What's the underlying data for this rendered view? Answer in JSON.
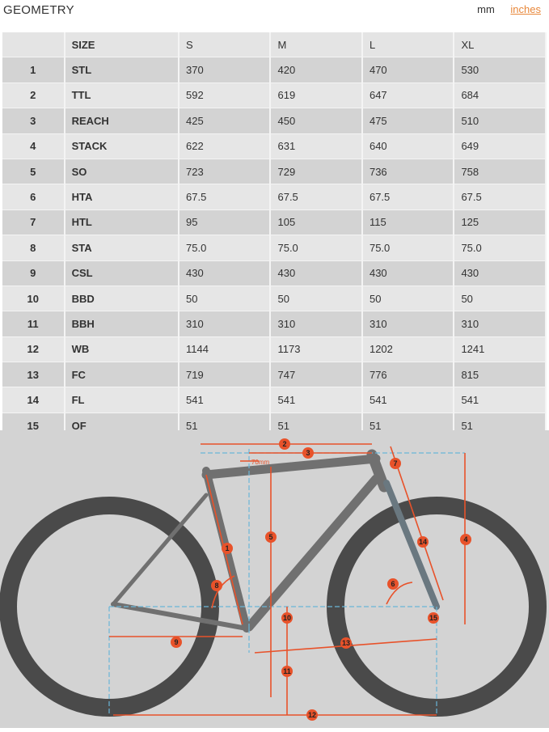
{
  "header": {
    "title": "GEOMETRY",
    "unit_mm": "mm",
    "unit_inches": "inches"
  },
  "table": {
    "columns": [
      "",
      "SIZE",
      "S",
      "M",
      "L",
      "XL"
    ],
    "rows": [
      [
        "1",
        "STL",
        "370",
        "420",
        "470",
        "530"
      ],
      [
        "2",
        "TTL",
        "592",
        "619",
        "647",
        "684"
      ],
      [
        "3",
        "REACH",
        "425",
        "450",
        "475",
        "510"
      ],
      [
        "4",
        "STACK",
        "622",
        "631",
        "640",
        "649"
      ],
      [
        "5",
        "SO",
        "723",
        "729",
        "736",
        "758"
      ],
      [
        "6",
        "HTA",
        "67.5",
        "67.5",
        "67.5",
        "67.5"
      ],
      [
        "7",
        "HTL",
        "95",
        "105",
        "115",
        "125"
      ],
      [
        "8",
        "STA",
        "75.0",
        "75.0",
        "75.0",
        "75.0"
      ],
      [
        "9",
        "CSL",
        "430",
        "430",
        "430",
        "430"
      ],
      [
        "10",
        "BBD",
        "50",
        "50",
        "50",
        "50"
      ],
      [
        "11",
        "BBH",
        "310",
        "310",
        "310",
        "310"
      ],
      [
        "12",
        "WB",
        "1144",
        "1173",
        "1202",
        "1241"
      ],
      [
        "13",
        "FC",
        "719",
        "747",
        "776",
        "815"
      ],
      [
        "14",
        "FL",
        "541",
        "541",
        "541",
        "541"
      ],
      [
        "15",
        "OF",
        "51",
        "51",
        "51",
        "51"
      ]
    ]
  },
  "diagram": {
    "offset_label": "70mm",
    "accent": "#e8522a",
    "guide": "#6ab6d8",
    "markers": [
      "1",
      "2",
      "3",
      "4",
      "5",
      "6",
      "7",
      "8",
      "9",
      "10",
      "11",
      "12",
      "13",
      "14",
      "15"
    ]
  }
}
